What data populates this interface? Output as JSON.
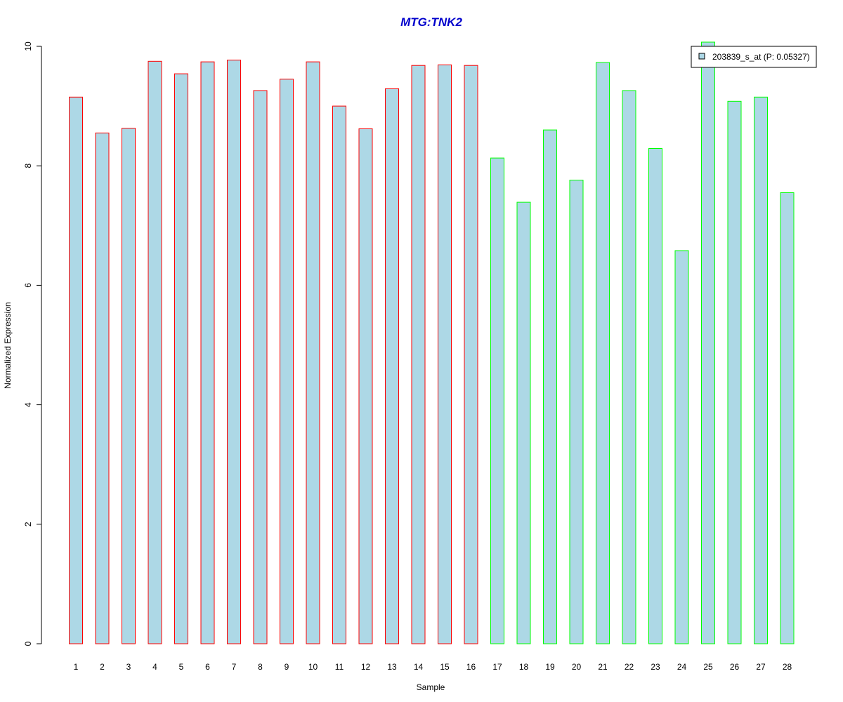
{
  "chart_data": {
    "type": "bar",
    "title": "MTG:TNK2",
    "xlabel": "Sample",
    "ylabel": "Normalized Expression",
    "categories": [
      "1",
      "2",
      "3",
      "4",
      "5",
      "6",
      "7",
      "8",
      "9",
      "10",
      "11",
      "12",
      "13",
      "14",
      "15",
      "16",
      "17",
      "18",
      "19",
      "20",
      "21",
      "22",
      "23",
      "24",
      "25",
      "26",
      "27",
      "28"
    ],
    "values": [
      9.15,
      8.55,
      8.63,
      9.75,
      9.54,
      9.74,
      9.77,
      9.26,
      9.45,
      9.74,
      9.0,
      8.62,
      9.29,
      9.68,
      9.69,
      9.68,
      8.13,
      7.39,
      8.6,
      7.76,
      9.73,
      9.26,
      8.29,
      6.58,
      10.07,
      9.08,
      9.15,
      7.55
    ],
    "groups": [
      1,
      1,
      1,
      1,
      1,
      1,
      1,
      1,
      1,
      1,
      1,
      1,
      1,
      1,
      1,
      1,
      2,
      2,
      2,
      2,
      2,
      2,
      2,
      2,
      2,
      2,
      2,
      2
    ],
    "ylim": [
      0,
      10
    ],
    "yticks": [
      "0",
      "2",
      "4",
      "6",
      "8",
      "10"
    ],
    "grid": false,
    "legend": {
      "position": "top-right",
      "entries": [
        {
          "label": "203839_s_at (P: 0.05327)"
        }
      ]
    }
  },
  "colors": {
    "title": "#0000cc",
    "bar_fill": "#add8e6",
    "group1_border": "#ff0000",
    "group2_border": "#00ff00",
    "axis": "#000000"
  }
}
